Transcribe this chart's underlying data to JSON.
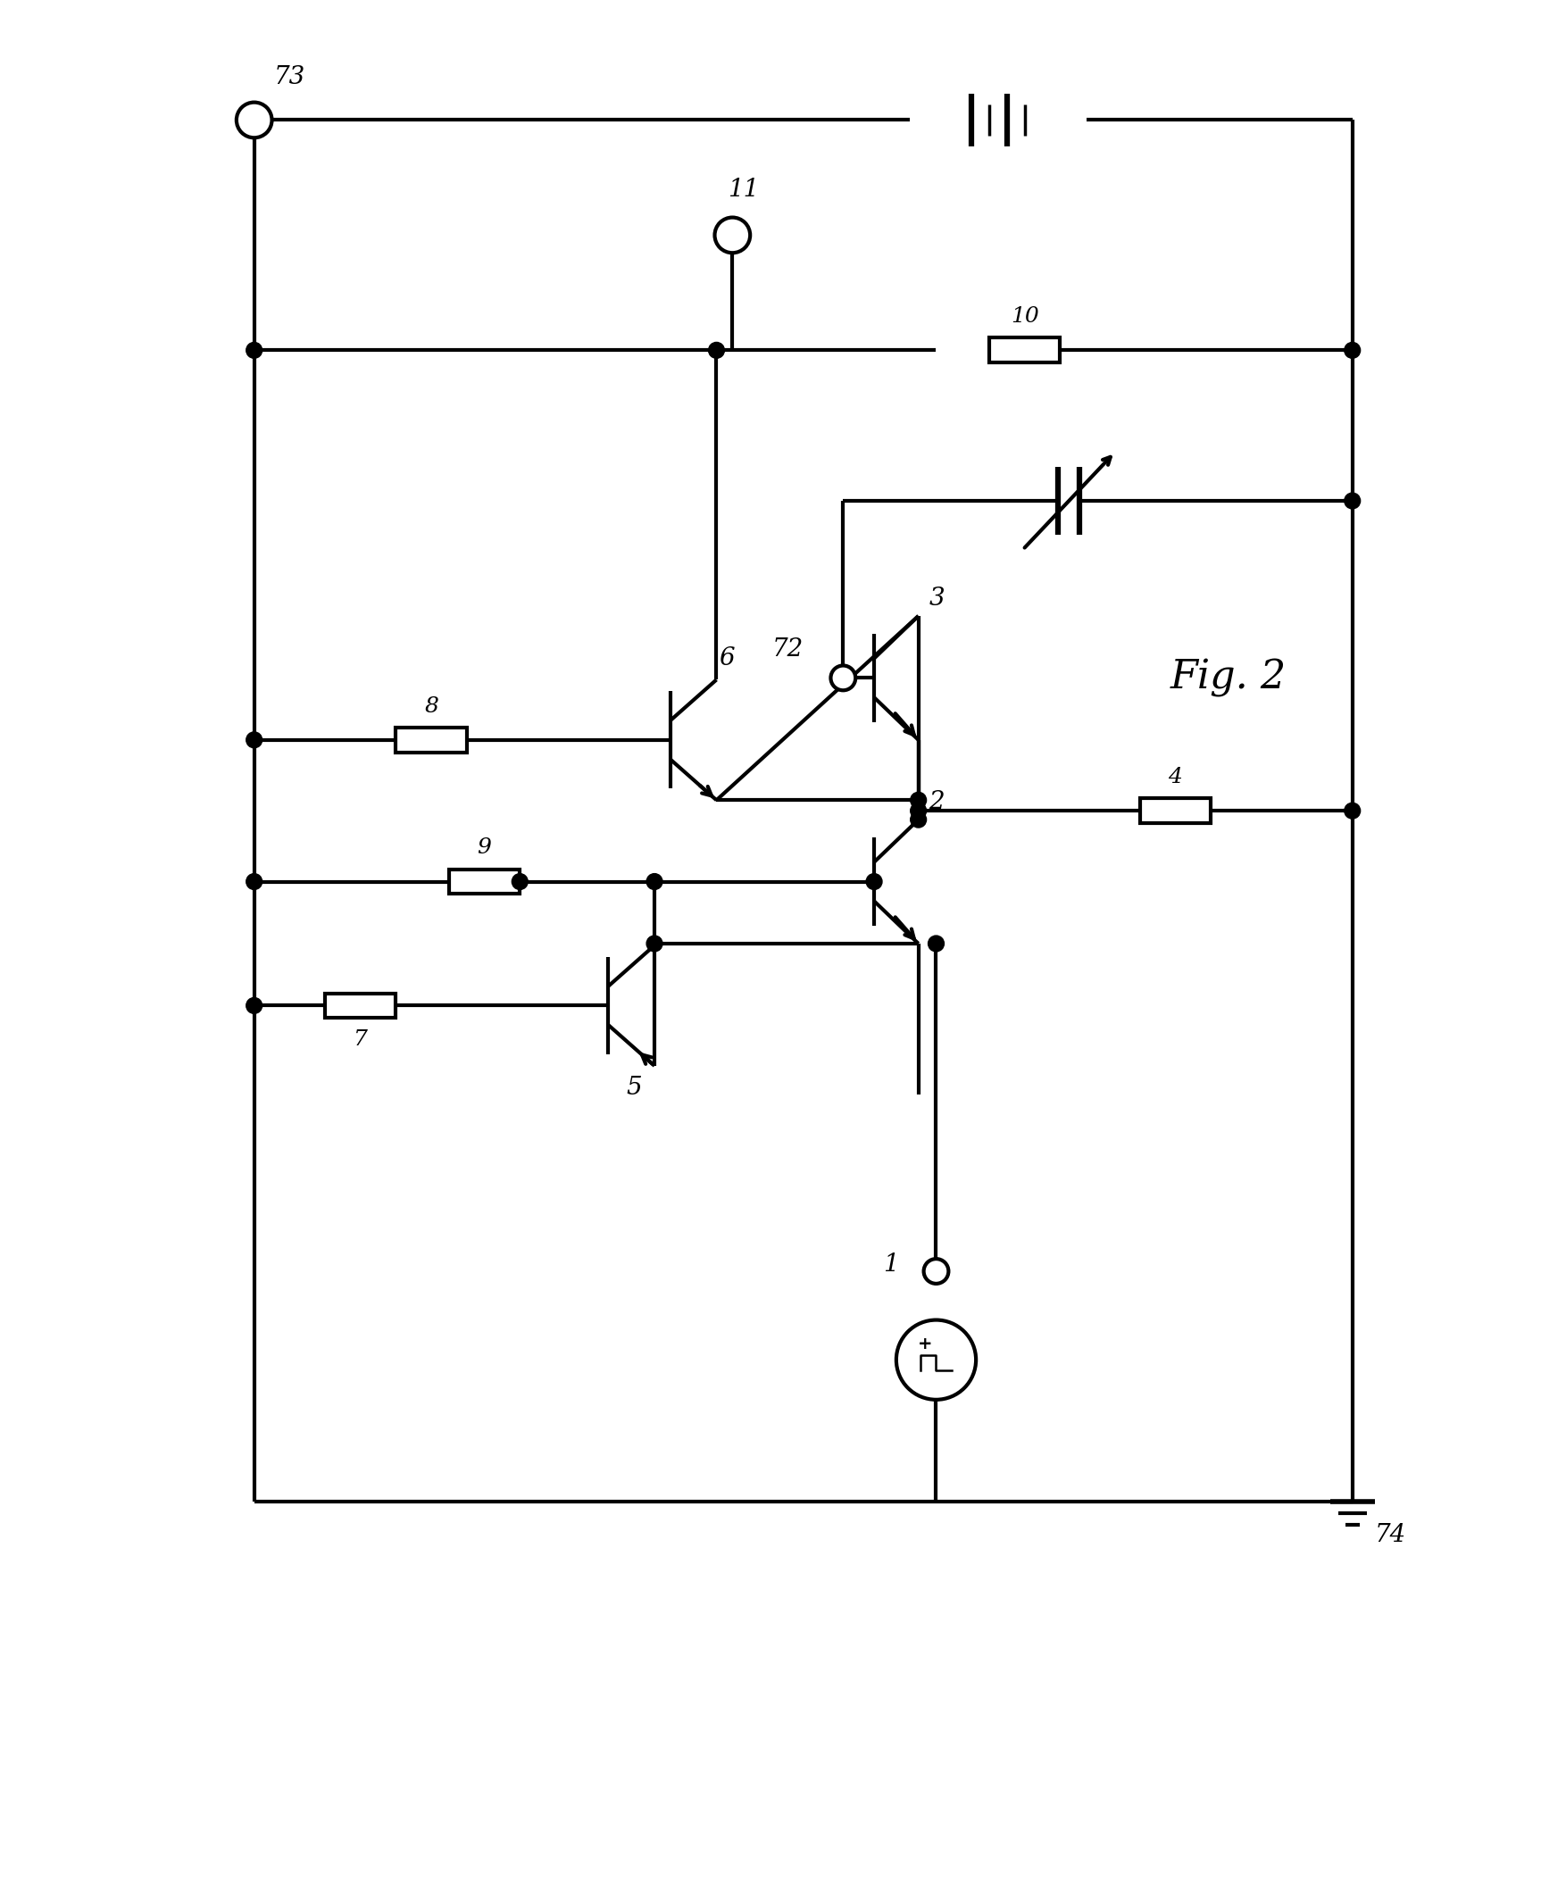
{
  "title": "Fig. 2",
  "bg_color": "#ffffff",
  "line_color": "#000000",
  "line_width": 3.0,
  "fig_width": 17.26,
  "fig_height": 21.07
}
